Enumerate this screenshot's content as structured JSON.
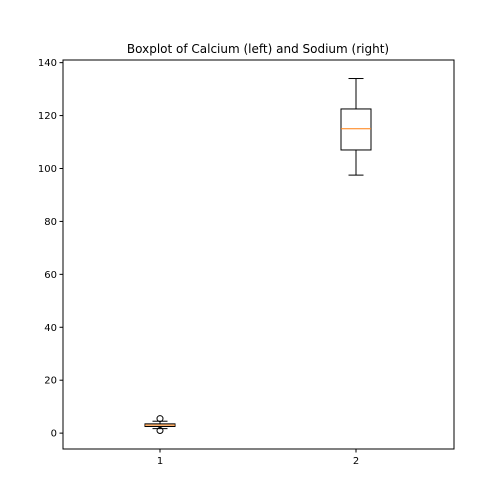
{
  "chart_data": {
    "type": "boxplot",
    "title": "Boxplot of Calcium (left) and Sodium (right)",
    "xlabel": "",
    "ylabel": "",
    "categories": [
      "1",
      "2"
    ],
    "ylim": [
      -6,
      141
    ],
    "yticks": [
      0,
      20,
      40,
      60,
      80,
      100,
      120,
      140
    ],
    "grid": false,
    "boxes": [
      {
        "position": "1",
        "whisker_low": 1.7,
        "q1": 2.5,
        "median": 3.0,
        "q3": 3.5,
        "whisker_high": 4.5,
        "outliers": [
          1.0,
          5.5
        ]
      },
      {
        "position": "2",
        "whisker_low": 97.5,
        "q1": 107.0,
        "median": 115.0,
        "q3": 122.5,
        "whisker_high": 134.0,
        "outliers": []
      }
    ],
    "colors": {
      "box": "#000000",
      "median": "#ff7f0e",
      "axes": "#000000"
    }
  }
}
